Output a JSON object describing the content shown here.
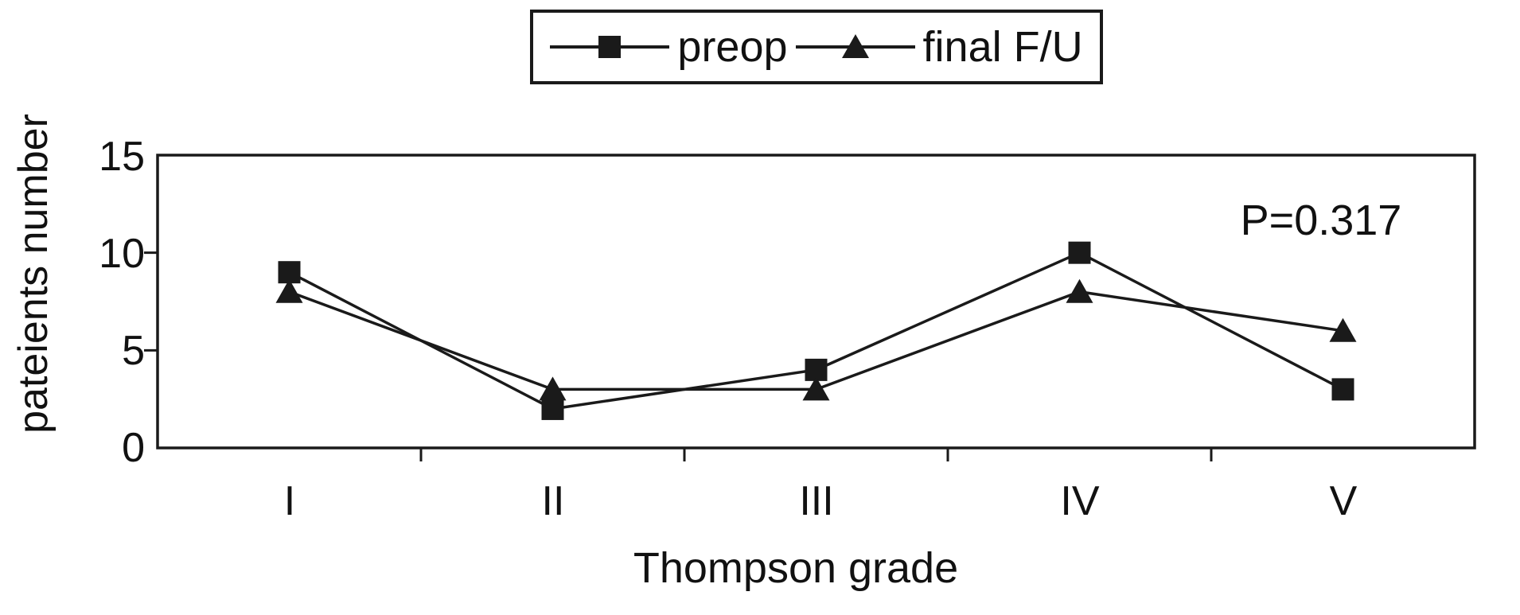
{
  "figure": {
    "background": "#ffffff",
    "ink_color": "#1a1a1a"
  },
  "legend": {
    "position": "top-center",
    "items": [
      {
        "label": "preop",
        "marker": "square-marker-icon"
      },
      {
        "label": "final F/U",
        "marker": "triangle-marker-icon"
      }
    ]
  },
  "chart_data": {
    "type": "line",
    "title": "",
    "xlabel": "Thompson grade",
    "ylabel": "pateients number",
    "categories": [
      "I",
      "II",
      "III",
      "IV",
      "V"
    ],
    "series": [
      {
        "name": "preop",
        "marker": "square",
        "values": [
          9,
          2,
          4,
          10,
          3
        ]
      },
      {
        "name": "final F/U",
        "marker": "triangle",
        "values": [
          8,
          3,
          3,
          8,
          6
        ]
      }
    ],
    "yticks": [
      0,
      5,
      10,
      15
    ],
    "ylim": [
      0,
      15
    ],
    "grid": "off",
    "legend_position": "top",
    "annotation": "P=0.317",
    "line_color": "#1a1a1a",
    "marker_color": "#1a1a1a"
  }
}
